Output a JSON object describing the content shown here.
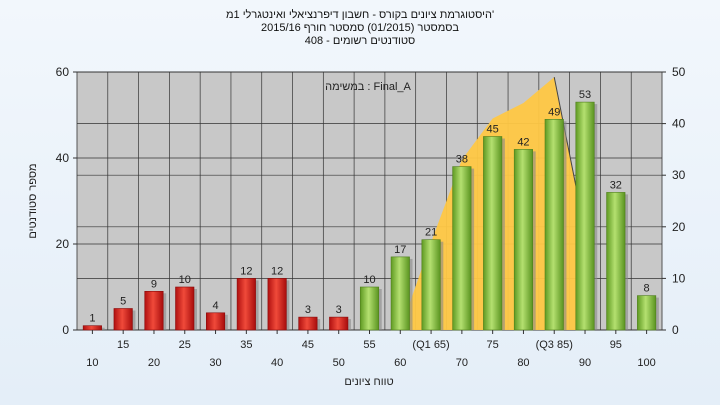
{
  "chart_data": {
    "type": "bar",
    "title_lines": [
      "היסטוגרמת ציונים בקורס - חשבון דיפרנציאלי ואינטגרלי 1מ'",
      "בסמסטר  (01/2015)  סמסטר חורף  2015/16",
      "סטודנטים רשומים - 408"
    ],
    "xlabel": "טווח ציונים",
    "ylabel": "מספר סטודנטים",
    "categories": [
      "10",
      "15",
      "20",
      "25",
      "30",
      "35",
      "40",
      "45",
      "50",
      "55",
      "60",
      "(Q1 65)",
      "70",
      "75",
      "80",
      "(Q3 85)",
      "90",
      "95",
      "100"
    ],
    "values": [
      1,
      5,
      9,
      10,
      4,
      12,
      12,
      3,
      3,
      10,
      17,
      21,
      38,
      45,
      42,
      49,
      53,
      32,
      8
    ],
    "bar_colors": {
      "failing": "#e02020",
      "passing": "#8cc63f"
    },
    "passing_from_category": "55",
    "ylim_left": [
      0,
      60
    ],
    "yticks_left": [
      0,
      20,
      40,
      60
    ],
    "ylim_right": [
      0,
      50
    ],
    "yticks_right": [
      0,
      10,
      20,
      30,
      40,
      50
    ],
    "area_highlight": {
      "color": "#ffc845",
      "points": [
        {
          "x": "60",
          "y_right": 0
        },
        {
          "x": "(Q1 65)",
          "y_right": 17
        },
        {
          "x": "70",
          "y_right": 33
        },
        {
          "x": "75",
          "y_right": 41
        },
        {
          "x": "80",
          "y_right": 44
        },
        {
          "x": "(Q3 85)",
          "y_right": 49
        },
        {
          "x": "90",
          "y_right": 19
        }
      ]
    },
    "annotation": "במשימה : Final_A",
    "grid": true
  }
}
